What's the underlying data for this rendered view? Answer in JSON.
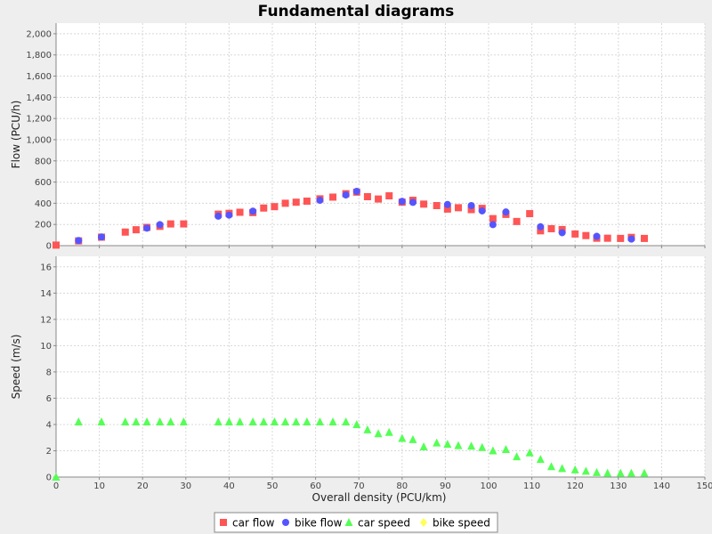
{
  "chart_data": {
    "type": "scatter",
    "title": "Fundamental diagrams",
    "xlabel": "Overall density (PCU/km)",
    "xlim": [
      0,
      150
    ],
    "x_ticks": [
      "0",
      "10",
      "20",
      "30",
      "40",
      "50",
      "60",
      "70",
      "80",
      "90",
      "100",
      "110",
      "120",
      "130",
      "140",
      "150"
    ],
    "grid": true,
    "legend_placement": "bottom-center",
    "panels": [
      {
        "id": "flow",
        "ylabel": "Flow (PCU/h)",
        "ylim": [
          0,
          2100
        ],
        "y_ticks": [
          "0",
          "200",
          "400",
          "600",
          "800",
          "1,000",
          "1,200",
          "1,400",
          "1,600",
          "1,800",
          "2,000"
        ],
        "series": [
          {
            "name": "car flow",
            "marker": "square",
            "color": "#ff5555",
            "points": [
              [
                0,
                5
              ],
              [
                5.2,
                45
              ],
              [
                10.5,
                80
              ],
              [
                16,
                128
              ],
              [
                18.5,
                150
              ],
              [
                21,
                172
              ],
              [
                24,
                182
              ],
              [
                26.5,
                205
              ],
              [
                29.5,
                205
              ],
              [
                37.5,
                297
              ],
              [
                40,
                305
              ],
              [
                42.5,
                315
              ],
              [
                45.5,
                312
              ],
              [
                48,
                355
              ],
              [
                50.5,
                368
              ],
              [
                53,
                400
              ],
              [
                55.5,
                410
              ],
              [
                58,
                420
              ],
              [
                61,
                442
              ],
              [
                64,
                458
              ],
              [
                67,
                490
              ],
              [
                69.5,
                505
              ],
              [
                72,
                462
              ],
              [
                74.5,
                440
              ],
              [
                77,
                470
              ],
              [
                80,
                410
              ],
              [
                82.5,
                428
              ],
              [
                85,
                392
              ],
              [
                88,
                378
              ],
              [
                90.5,
                345
              ],
              [
                93,
                358
              ],
              [
                96,
                340
              ],
              [
                98.5,
                352
              ],
              [
                101,
                255
              ],
              [
                104,
                295
              ],
              [
                106.5,
                228
              ],
              [
                109.5,
                302
              ],
              [
                112,
                140
              ],
              [
                114.5,
                160
              ],
              [
                117,
                152
              ],
              [
                120,
                110
              ],
              [
                122.5,
                95
              ],
              [
                125,
                70
              ],
              [
                127.5,
                70
              ],
              [
                130.5,
                68
              ],
              [
                133,
                78
              ],
              [
                136,
                68
              ]
            ]
          },
          {
            "name": "bike flow",
            "marker": "circle",
            "color": "#5555ff",
            "points": [
              [
                5.2,
                48
              ],
              [
                10.5,
                82
              ],
              [
                21,
                165
              ],
              [
                24,
                198
              ],
              [
                37.5,
                278
              ],
              [
                40,
                288
              ],
              [
                45.5,
                325
              ],
              [
                61,
                428
              ],
              [
                67,
                478
              ],
              [
                69.5,
                512
              ],
              [
                80,
                418
              ],
              [
                82.5,
                408
              ],
              [
                90.5,
                388
              ],
              [
                96,
                378
              ],
              [
                98.5,
                328
              ],
              [
                101,
                198
              ],
              [
                104,
                318
              ],
              [
                112,
                178
              ],
              [
                117,
                122
              ],
              [
                125,
                88
              ],
              [
                133,
                62
              ]
            ]
          }
        ]
      },
      {
        "id": "speed",
        "ylabel": "Speed (m/s)",
        "ylim": [
          0,
          16.8
        ],
        "y_ticks": [
          "0",
          "2",
          "4",
          "6",
          "8",
          "10",
          "12",
          "14",
          "16"
        ],
        "series": [
          {
            "name": "car speed",
            "marker": "triangle",
            "color": "#55ff55",
            "points": [
              [
                0,
                0
              ],
              [
                5.2,
                4.2
              ],
              [
                10.5,
                4.2
              ],
              [
                16,
                4.2
              ],
              [
                18.5,
                4.2
              ],
              [
                21,
                4.2
              ],
              [
                24,
                4.2
              ],
              [
                26.5,
                4.2
              ],
              [
                29.5,
                4.2
              ],
              [
                37.5,
                4.2
              ],
              [
                40,
                4.2
              ],
              [
                42.5,
                4.2
              ],
              [
                45.5,
                4.2
              ],
              [
                48,
                4.2
              ],
              [
                50.5,
                4.2
              ],
              [
                53,
                4.2
              ],
              [
                55.5,
                4.2
              ],
              [
                58,
                4.2
              ],
              [
                61,
                4.2
              ],
              [
                64,
                4.2
              ],
              [
                67,
                4.2
              ],
              [
                69.5,
                4.0
              ],
              [
                72,
                3.6
              ],
              [
                74.5,
                3.3
              ],
              [
                77,
                3.4
              ],
              [
                80,
                2.95
              ],
              [
                82.5,
                2.85
              ],
              [
                85,
                2.3
              ],
              [
                88,
                2.6
              ],
              [
                90.5,
                2.5
              ],
              [
                93,
                2.4
              ],
              [
                96,
                2.35
              ],
              [
                98.5,
                2.25
              ],
              [
                101,
                2.0
              ],
              [
                104,
                2.1
              ],
              [
                106.5,
                1.55
              ],
              [
                109.5,
                1.85
              ],
              [
                112,
                1.35
              ],
              [
                114.5,
                0.8
              ],
              [
                117,
                0.65
              ],
              [
                120,
                0.55
              ],
              [
                122.5,
                0.45
              ],
              [
                125,
                0.35
              ],
              [
                127.5,
                0.3
              ],
              [
                130.5,
                0.3
              ],
              [
                133,
                0.3
              ],
              [
                136,
                0.3
              ]
            ]
          },
          {
            "name": "bike speed",
            "marker": "diamond",
            "color": "#ffff55",
            "points": []
          }
        ]
      }
    ]
  }
}
